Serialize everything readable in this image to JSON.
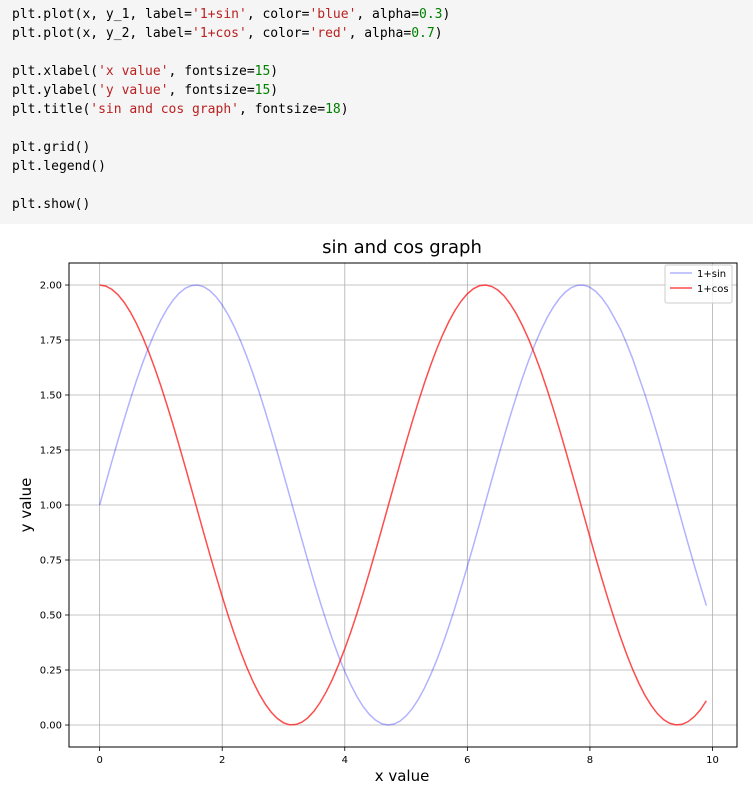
{
  "code_cell": {
    "lines": [
      [
        {
          "t": "plt.plot(x, y_1, label="
        },
        {
          "t": "'1+sin'",
          "c": "str"
        },
        {
          "t": ", color="
        },
        {
          "t": "'blue'",
          "c": "str"
        },
        {
          "t": ", alpha="
        },
        {
          "t": "0.3",
          "c": "num"
        },
        {
          "t": ")"
        }
      ],
      [
        {
          "t": "plt.plot(x, y_2, label="
        },
        {
          "t": "'1+cos'",
          "c": "str"
        },
        {
          "t": ", color="
        },
        {
          "t": "'red'",
          "c": "str"
        },
        {
          "t": ", alpha="
        },
        {
          "t": "0.7",
          "c": "num"
        },
        {
          "t": ")"
        }
      ],
      [],
      [
        {
          "t": "plt.xlabel("
        },
        {
          "t": "'x value'",
          "c": "str"
        },
        {
          "t": ", fontsize="
        },
        {
          "t": "15",
          "c": "num"
        },
        {
          "t": ")"
        }
      ],
      [
        {
          "t": "plt.ylabel("
        },
        {
          "t": "'y value'",
          "c": "str"
        },
        {
          "t": ", fontsize="
        },
        {
          "t": "15",
          "c": "num"
        },
        {
          "t": ")"
        }
      ],
      [
        {
          "t": "plt.title("
        },
        {
          "t": "'sin and cos graph'",
          "c": "str"
        },
        {
          "t": ", fontsize="
        },
        {
          "t": "18",
          "c": "num"
        },
        {
          "t": ")"
        }
      ],
      [],
      [
        {
          "t": "plt.grid()"
        }
      ],
      [
        {
          "t": "plt.legend()"
        }
      ],
      [],
      [
        {
          "t": "plt.show()"
        }
      ]
    ]
  },
  "chart_data": {
    "type": "line",
    "title": "sin and cos graph",
    "xlabel": "x value",
    "ylabel": "y value",
    "xlim": [
      -0.5,
      10.4
    ],
    "ylim": [
      -0.1,
      2.1
    ],
    "xticks": [
      0,
      2,
      4,
      6,
      8,
      10
    ],
    "xtick_labels": [
      "0",
      "2",
      "4",
      "6",
      "8",
      "10"
    ],
    "yticks": [
      0.0,
      0.25,
      0.5,
      0.75,
      1.0,
      1.25,
      1.5,
      1.75,
      2.0
    ],
    "ytick_labels": [
      "0.00",
      "0.25",
      "0.50",
      "0.75",
      "1.00",
      "1.25",
      "1.50",
      "1.75",
      "2.00"
    ],
    "grid": true,
    "legend_position": "top-right",
    "x": [
      0.0,
      0.1,
      0.2,
      0.3,
      0.4,
      0.5,
      0.6,
      0.7,
      0.8,
      0.9,
      1.0,
      1.1,
      1.2,
      1.3,
      1.4,
      1.5,
      1.6,
      1.7,
      1.8,
      1.9,
      2.0,
      2.1,
      2.2,
      2.3,
      2.4,
      2.5,
      2.6,
      2.7,
      2.8,
      2.9,
      3.0,
      3.1,
      3.2,
      3.3,
      3.4,
      3.5,
      3.6,
      3.7,
      3.8,
      3.9,
      4.0,
      4.1,
      4.2,
      4.3,
      4.4,
      4.5,
      4.6,
      4.7,
      4.8,
      4.9,
      5.0,
      5.1,
      5.2,
      5.3,
      5.4,
      5.5,
      5.6,
      5.7,
      5.8,
      5.9,
      6.0,
      6.1,
      6.2,
      6.3,
      6.4,
      6.5,
      6.6,
      6.7,
      6.8,
      6.9,
      7.0,
      7.1,
      7.2,
      7.3,
      7.4,
      7.5,
      7.6,
      7.7,
      7.8,
      7.9,
      8.0,
      8.1,
      8.2,
      8.3,
      8.4,
      8.5,
      8.6,
      8.7,
      8.8,
      8.9,
      9.0,
      9.1,
      9.2,
      9.3,
      9.4,
      9.5,
      9.6,
      9.7,
      9.8,
      9.9
    ],
    "series": [
      {
        "name": "1+sin",
        "color": "#0000ff",
        "alpha": 0.3,
        "values": [
          1.0,
          1.0998,
          1.1987,
          1.2955,
          1.3894,
          1.4794,
          1.5646,
          1.6442,
          1.7174,
          1.7833,
          1.8415,
          1.8912,
          1.932,
          1.9636,
          1.9854,
          1.9975,
          1.9996,
          1.9917,
          1.9738,
          1.9463,
          1.9093,
          1.8632,
          1.8085,
          1.7457,
          1.6755,
          1.5985,
          1.5155,
          1.4274,
          1.335,
          1.2392,
          1.1411,
          1.0416,
          0.9416,
          0.8425,
          0.7445,
          0.6492,
          0.5575,
          0.4702,
          0.3881,
          0.3122,
          0.2432,
          0.1819,
          0.1284,
          0.0837,
          0.0484,
          0.0225,
          0.0063,
          0.0001,
          0.0038,
          0.0175,
          0.0411,
          0.0742,
          0.1165,
          0.1678,
          0.2275,
          0.2945,
          0.3687,
          0.4495,
          0.5356,
          0.6266,
          0.7206,
          0.8174,
          0.9162,
          1.0168,
          1.1165,
          1.2151,
          1.3115,
          1.4048,
          1.494,
          1.5784,
          1.657,
          1.729,
          1.7937,
          1.8504,
          1.8985,
          1.938,
          1.9683,
          1.9884,
          1.999,
          1.9996,
          1.9894,
          1.9696,
          1.9395,
          1.8994,
          1.8501,
          1.7984,
          1.7339,
          1.6628,
          1.5812,
          1.5009,
          1.4121,
          1.3193,
          1.2229,
          1.125,
          1.0254,
          0.9252,
          0.8259,
          0.7289,
          0.6351,
          0.5428
        ]
      },
      {
        "name": "1+cos",
        "color": "#ff0000",
        "alpha": 0.7,
        "values": [
          2.0,
          1.995,
          1.9801,
          1.9553,
          1.9211,
          1.8776,
          1.8253,
          1.7648,
          1.6967,
          1.6216,
          1.5403,
          1.4536,
          1.3624,
          1.2675,
          1.17,
          1.0707,
          0.9708,
          0.8712,
          0.7728,
          0.6768,
          0.5839,
          0.4951,
          0.4115,
          0.3337,
          0.2626,
          0.1989,
          0.1431,
          0.0961,
          0.058,
          0.0293,
          0.01,
          0.0009,
          0.002,
          0.0125,
          0.0333,
          0.0635,
          0.1033,
          0.1519,
          0.209,
          0.2747,
          0.3464,
          0.4242,
          0.5087,
          0.5987,
          0.6926,
          0.7889,
          0.8876,
          0.9875,
          1.0875,
          1.1865,
          1.2837,
          1.378,
          1.4685,
          1.5544,
          1.6347,
          1.7087,
          1.7756,
          1.8347,
          1.8853,
          1.9272,
          1.9602,
          1.9833,
          1.997,
          2.0,
          1.9931,
          1.9766,
          1.9502,
          1.9137,
          1.8687,
          1.8149,
          1.7539,
          1.6835,
          1.6083,
          1.5262,
          1.4389,
          1.3463,
          1.2509,
          1.1529,
          1.0541,
          0.9536,
          0.8545,
          0.7554,
          0.6603,
          0.5684,
          0.4809,
          0.398,
          0.3209,
          0.2512,
          0.1887,
          0.1342,
          0.0889,
          0.0522,
          0.0248,
          0.0078,
          0.0004,
          0.0027,
          0.0152,
          0.0371,
          0.0682,
          0.1103
        ]
      }
    ]
  }
}
